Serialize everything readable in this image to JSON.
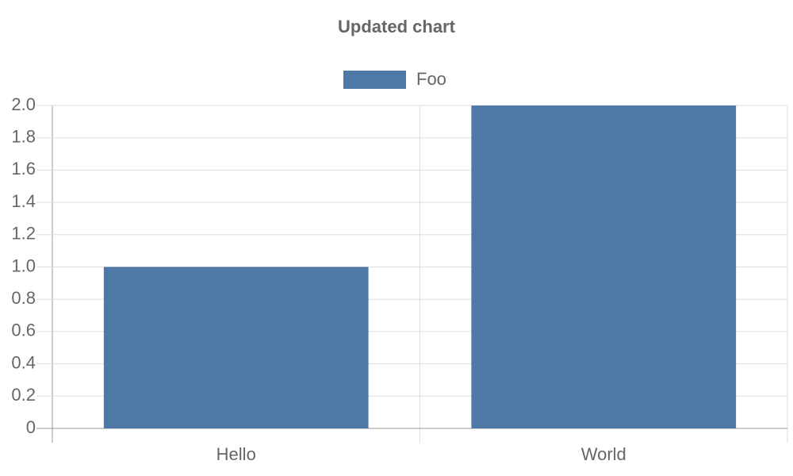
{
  "chart_data": {
    "type": "bar",
    "title": "Updated chart",
    "categories": [
      "Hello",
      "World"
    ],
    "series": [
      {
        "name": "Foo",
        "color": "#4e79a7",
        "values": [
          1,
          2
        ]
      }
    ],
    "ylim": [
      0,
      2
    ],
    "yticks": [
      0,
      0.2,
      0.4,
      0.6,
      0.8,
      {
        "value": 1,
        "label": "1.0"
      },
      1.2,
      1.4,
      1.6,
      1.8,
      {
        "value": 2,
        "label": "2.0"
      }
    ],
    "grid": true,
    "legend": "top"
  }
}
